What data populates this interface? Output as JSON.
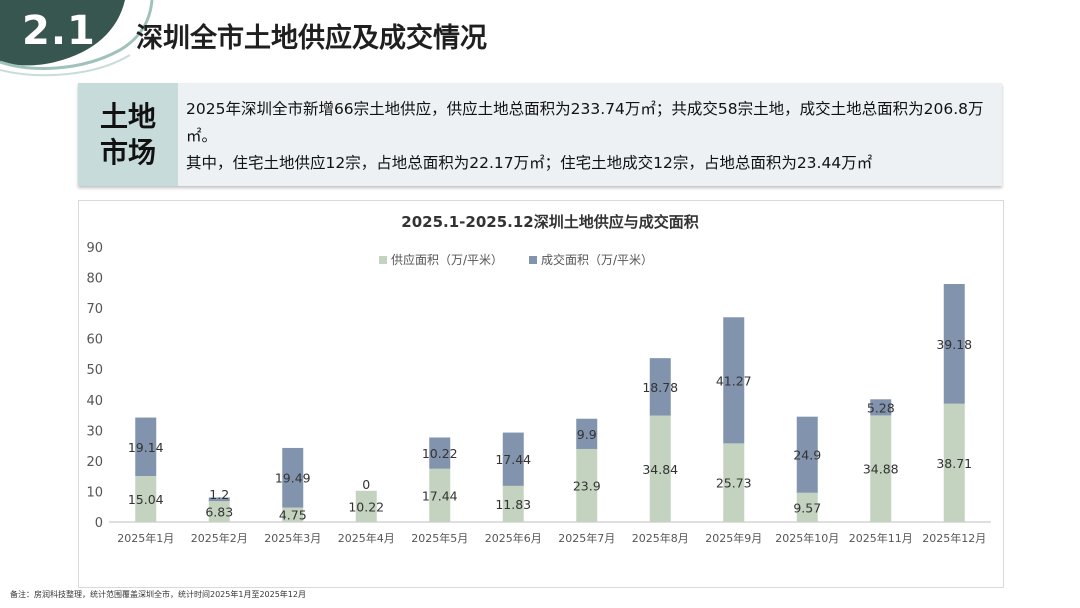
{
  "header": {
    "section_number": "2.1",
    "title": "深圳全市土地供应及成交情况"
  },
  "summary": {
    "label_line1": "土地",
    "label_line2": "市场",
    "text_line1": "2025年深圳全市新增66宗土地供应，供应土地总面积为233.74万㎡；共成交58宗土地，成交土地总面积为206.8万㎡。",
    "text_line2": "其中，住宅土地供应12宗，占地总面积为22.17万㎡；住宅土地成交12宗，占地总面积为23.44万㎡"
  },
  "chart_data": {
    "type": "bar",
    "stacked": true,
    "title": "2025.1-2025.12深圳土地供应与成交面积",
    "categories": [
      "2025年1月",
      "2025年2月",
      "2025年3月",
      "2025年4月",
      "2025年5月",
      "2025年6月",
      "2025年7月",
      "2025年8月",
      "2025年9月",
      "2025年10月",
      "2025年11月",
      "2025年12月"
    ],
    "series": [
      {
        "name": "供应面积（万/平米）",
        "color": "#c4d3bf",
        "values": [
          15.04,
          6.83,
          4.75,
          10.22,
          17.44,
          11.83,
          23.9,
          34.84,
          25.73,
          9.57,
          34.88,
          38.71
        ]
      },
      {
        "name": "成交面积（万/平米）",
        "color": "#8293ad",
        "values": [
          19.14,
          1.2,
          19.49,
          0,
          10.22,
          17.44,
          9.9,
          18.78,
          41.27,
          24.9,
          5.28,
          39.18
        ]
      }
    ],
    "ylim": [
      0,
      90
    ],
    "yticks": [
      0,
      10,
      20,
      30,
      40,
      50,
      60,
      70,
      80,
      90
    ],
    "legend_position": "top-center",
    "grid": false
  },
  "footnote": "备注：房润科技整理，统计范围覆盖深圳全市，统计时间2025年1月至2025年12月"
}
